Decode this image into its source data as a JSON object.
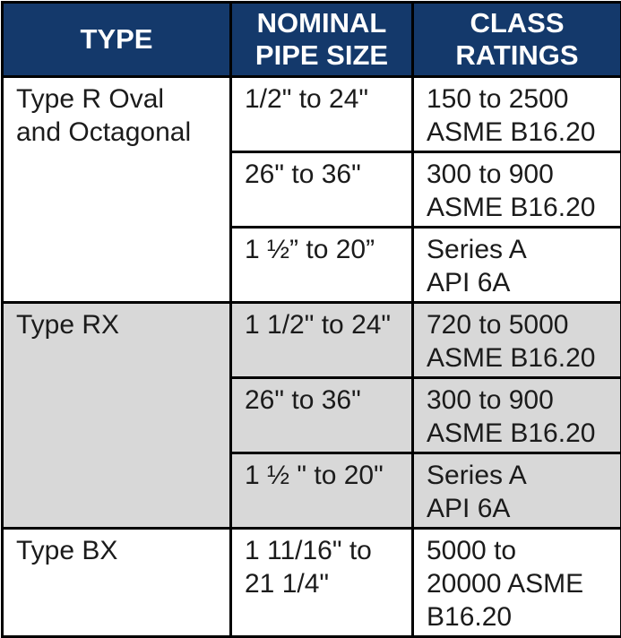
{
  "table": {
    "header": {
      "type": "TYPE",
      "pipe_size": "NOMINAL\nPIPE SIZE",
      "class_ratings": "CLASS\nRATINGS"
    },
    "groups": [
      {
        "type": "Type R Oval\nand Octagonal",
        "rows": [
          {
            "size": "1/2\" to 24\"",
            "rating": "150 to 2500\nASME B16.20"
          },
          {
            "size": "26\" to 36\"",
            "rating": "300 to 900\nASME B16.20"
          },
          {
            "size": "1 ½” to 20”",
            "rating": "Series A\nAPI 6A"
          }
        ]
      },
      {
        "type": "Type RX",
        "rows": [
          {
            "size": "1 1/2\" to 24\"",
            "rating": "720 to 5000\nASME B16.20"
          },
          {
            "size": "26\" to 36\"",
            "rating": "300 to 900\nASME B16.20"
          },
          {
            "size": "1 ½ \" to 20\"",
            "rating": "Series A\nAPI 6A"
          }
        ]
      },
      {
        "type": "Type BX",
        "rows": [
          {
            "size": "1 11/16\" to\n21 1/4\"",
            "rating": "5000 to\n20000 ASME\nB16.20"
          }
        ]
      }
    ],
    "colors": {
      "header_bg": "#14396B",
      "header_text": "#FFFFFF",
      "row_alt_bg": "#D8D8D8",
      "border": "#000000"
    }
  }
}
